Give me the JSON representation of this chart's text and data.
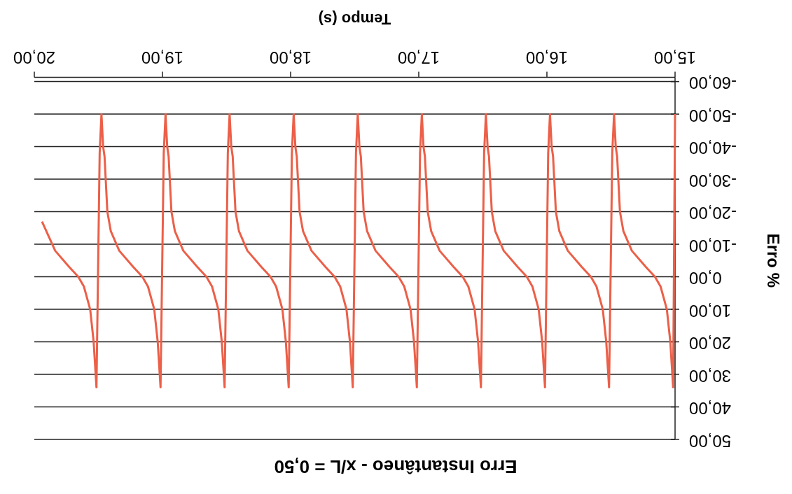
{
  "chart_data": {
    "type": "line",
    "title": "Erro Instantâneo - x/L = 0,50",
    "xlabel": "Tempo (s)",
    "ylabel": "Erro %",
    "xlim": [
      20,
      15
    ],
    "xticks": [
      {
        "value": 15,
        "label": "15,00"
      },
      {
        "value": 16,
        "label": "16,00"
      },
      {
        "value": 17,
        "label": "17,00"
      },
      {
        "value": 18,
        "label": "18,00"
      },
      {
        "value": 19,
        "label": "19,00"
      },
      {
        "value": 20,
        "label": "20,00"
      }
    ],
    "ylim": [
      50,
      -60
    ],
    "yticks": [
      {
        "value": -60,
        "label": "-60,00"
      },
      {
        "value": -50,
        "label": "-50,00"
      },
      {
        "value": -40,
        "label": "-40,00"
      },
      {
        "value": -30,
        "label": "-30,00"
      },
      {
        "value": -20,
        "label": "-20,00"
      },
      {
        "value": -10,
        "label": "-10,00"
      },
      {
        "value": 0,
        "label": "0,00"
      },
      {
        "value": 10,
        "label": "10,00"
      },
      {
        "value": 20,
        "label": "20,00"
      },
      {
        "value": 30,
        "label": "30,00"
      },
      {
        "value": 40,
        "label": "40,00"
      },
      {
        "value": 50,
        "label": "50,00"
      }
    ],
    "grid": "y",
    "marker": "none",
    "line_style": "solid",
    "series": [
      {
        "color": "#ec5f48",
        "x": [
          15.0,
          15.015,
          15.037,
          15.064,
          15.113,
          15.157,
          15.228,
          15.337,
          15.403,
          15.43,
          15.452,
          15.463,
          15.476,
          15.49,
          15.515,
          15.537,
          15.564,
          15.613,
          15.657,
          15.728,
          15.837,
          15.903,
          15.93,
          15.952,
          15.963,
          15.976,
          15.99,
          16.015,
          16.037,
          16.064,
          16.113,
          16.157,
          16.228,
          16.337,
          16.403,
          16.43,
          16.452,
          16.463,
          16.476,
          16.49,
          16.515,
          16.537,
          16.564,
          16.613,
          16.657,
          16.728,
          16.837,
          16.903,
          16.93,
          16.952,
          16.963,
          16.976,
          16.99,
          17.015,
          17.037,
          17.064,
          17.113,
          17.157,
          17.228,
          17.337,
          17.403,
          17.43,
          17.452,
          17.463,
          17.476,
          17.49,
          17.515,
          17.537,
          17.564,
          17.613,
          17.657,
          17.728,
          17.837,
          17.903,
          17.93,
          17.952,
          17.963,
          17.976,
          17.99,
          18.015,
          18.037,
          18.064,
          18.113,
          18.157,
          18.228,
          18.337,
          18.403,
          18.43,
          18.452,
          18.463,
          18.476,
          18.49,
          18.515,
          18.537,
          18.564,
          18.613,
          18.657,
          18.728,
          18.837,
          18.903,
          18.93,
          18.952,
          18.963,
          18.976,
          18.99,
          19.015,
          19.037,
          19.064,
          19.113,
          19.157,
          19.228,
          19.337,
          19.403,
          19.43,
          19.452,
          19.463,
          19.476,
          19.49,
          19.515,
          19.537,
          19.564,
          19.613,
          19.657,
          19.728,
          19.837,
          19.94
        ],
        "values": [
          -50,
          34,
          20,
          10,
          3,
          0,
          -3,
          -8,
          -14,
          -20,
          -37,
          -40,
          -50,
          -38,
          34,
          20,
          10,
          3,
          0,
          -3,
          -8,
          -14,
          -20,
          -37,
          -40,
          -50,
          -38,
          34,
          20,
          10,
          3,
          0,
          -3,
          -8,
          -14,
          -20,
          -37,
          -40,
          -50,
          -38,
          34,
          20,
          10,
          3,
          0,
          -3,
          -8,
          -14,
          -20,
          -37,
          -40,
          -50,
          -38,
          34,
          20,
          10,
          3,
          0,
          -3,
          -8,
          -14,
          -20,
          -37,
          -40,
          -50,
          -38,
          34,
          20,
          10,
          3,
          0,
          -3,
          -8,
          -14,
          -20,
          -37,
          -40,
          -50,
          -38,
          34,
          20,
          10,
          3,
          0,
          -3,
          -8,
          -14,
          -20,
          -37,
          -40,
          -50,
          -38,
          34,
          20,
          10,
          3,
          0,
          -3,
          -8,
          -14,
          -20,
          -37,
          -40,
          -50,
          -38,
          34,
          20,
          10,
          3,
          0,
          -3,
          -8,
          -14,
          -20,
          -37,
          -40,
          -50,
          -38,
          34,
          20,
          10,
          3,
          0,
          -3,
          -8,
          -17
        ]
      }
    ]
  }
}
